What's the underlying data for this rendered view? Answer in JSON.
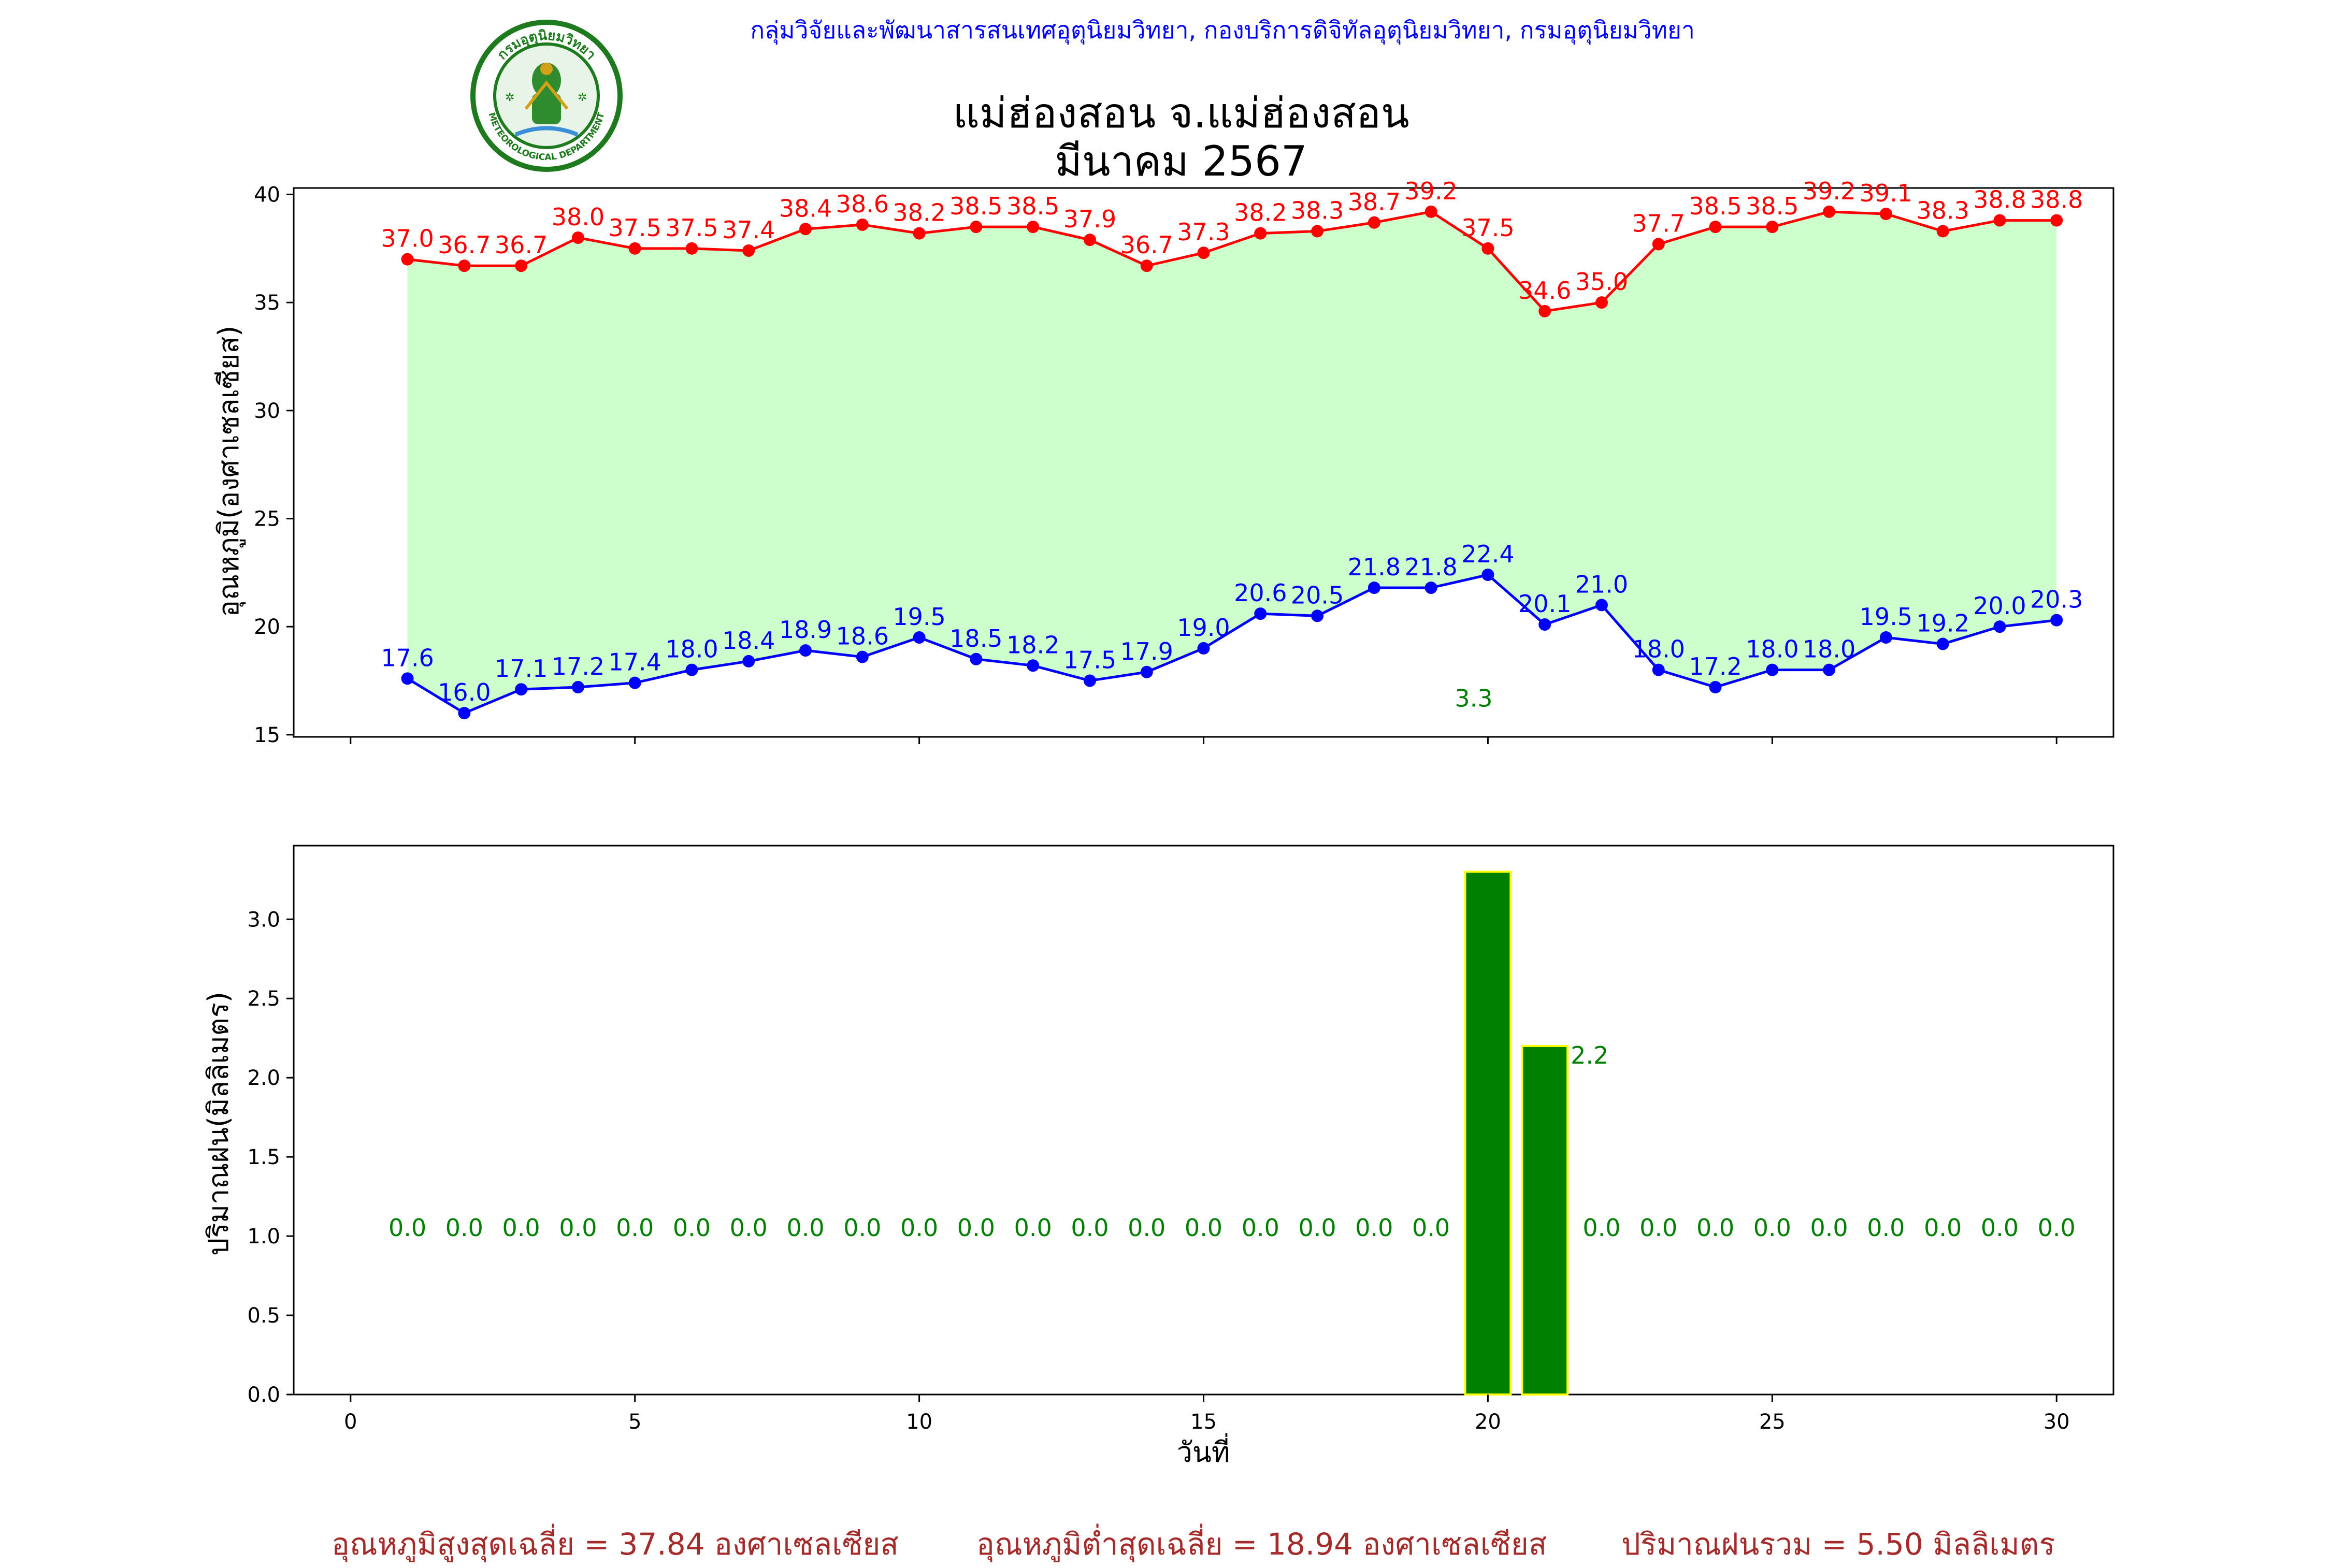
{
  "header": {
    "organization": "กลุ่มวิจัยและพัฒนาสารสนเทศอุตุนิยมวิทยา, กองบริการดิจิทัลอุตุนิยมวิทยา, กรมอุตุนิยมวิทยา",
    "title_line1": "แม่ฮ่องสอน จ.แม่ฮ่องสอน",
    "title_line2": "มีนาคม 2567",
    "logo_text_top": "กรมอุตุนิยมวิทยา",
    "logo_text_bottom": "METEOROLOGICAL DEPARTMENT"
  },
  "colors": {
    "max_series": "#ff0000",
    "min_series": "#0000ff",
    "fill": "#ccffcc",
    "rain_bar": "#008000",
    "rain_edge": "#ffff00",
    "rain_label": "#008000",
    "summary": "#a52a2a",
    "header": "#0000ff"
  },
  "chart_data": [
    {
      "type": "line",
      "ylabel": "อุณหภูมิ(องศาเซลเซียส)",
      "xlim": [
        -1,
        31
      ],
      "ylim": [
        14.9,
        40.3
      ],
      "xticks": [
        0,
        5,
        10,
        15,
        20,
        25,
        30
      ],
      "yticks": [
        15,
        20,
        25,
        30,
        35,
        40
      ],
      "grid": false,
      "x": [
        1,
        2,
        3,
        4,
        5,
        6,
        7,
        8,
        9,
        10,
        11,
        12,
        13,
        14,
        15,
        16,
        17,
        18,
        19,
        20,
        21,
        22,
        23,
        24,
        25,
        26,
        27,
        28,
        29,
        30
      ],
      "series": [
        {
          "key": "max",
          "values": [
            37.0,
            36.7,
            36.7,
            38.0,
            37.5,
            37.5,
            37.4,
            38.4,
            38.6,
            38.2,
            38.5,
            38.5,
            37.9,
            36.7,
            37.3,
            38.2,
            38.3,
            38.7,
            39.2,
            37.5,
            34.6,
            35.0,
            37.7,
            38.5,
            38.5,
            39.2,
            39.1,
            38.3,
            38.8,
            38.8
          ]
        },
        {
          "key": "min",
          "values": [
            17.6,
            16.0,
            17.1,
            17.2,
            17.4,
            18.0,
            18.4,
            18.9,
            18.6,
            19.5,
            18.5,
            18.2,
            17.5,
            17.9,
            19.0,
            20.6,
            20.5,
            21.8,
            21.8,
            22.4,
            20.1,
            21.0,
            18.0,
            17.2,
            18.0,
            18.0,
            19.5,
            19.2,
            20.0,
            20.3
          ]
        }
      ],
      "annotation": {
        "text": "3.3",
        "x": 19.75,
        "y": 16.3
      }
    },
    {
      "type": "bar",
      "ylabel": "ปริมาณฝน(มิลลิเมตร)",
      "xlabel": "วันที่",
      "xlim": [
        -1,
        31
      ],
      "ylim": [
        0,
        3.465
      ],
      "xticks": [
        0,
        5,
        10,
        15,
        20,
        25,
        30
      ],
      "yticks": [
        0.0,
        0.5,
        1.0,
        1.5,
        2.0,
        2.5,
        3.0
      ],
      "grid": false,
      "x": [
        1,
        2,
        3,
        4,
        5,
        6,
        7,
        8,
        9,
        10,
        11,
        12,
        13,
        14,
        15,
        16,
        17,
        18,
        19,
        20,
        21,
        22,
        23,
        24,
        25,
        26,
        27,
        28,
        29,
        30
      ],
      "values": [
        0,
        0,
        0,
        0,
        0,
        0,
        0,
        0,
        0,
        0,
        0,
        0,
        0,
        0,
        0,
        0,
        0,
        0,
        0,
        3.3,
        2.2,
        0,
        0,
        0,
        0,
        0,
        0,
        0,
        0,
        0
      ],
      "labels": [
        "0.0",
        "0.0",
        "0.0",
        "0.0",
        "0.0",
        "0.0",
        "0.0",
        "0.0",
        "0.0",
        "0.0",
        "0.0",
        "0.0",
        "0.0",
        "0.0",
        "0.0",
        "0.0",
        "0.0",
        "0.0",
        "0.0",
        "",
        "2.2",
        "0.0",
        "0.0",
        "0.0",
        "0.0",
        "0.0",
        "0.0",
        "0.0",
        "0.0",
        "0.0"
      ]
    }
  ],
  "summary": {
    "avg_max": "อุณหภูมิสูงสุดเฉลี่ย = 37.84 องศาเซลเซียส",
    "avg_min": "อุณหภูมิต่ำสุดเฉลี่ย = 18.94 องศาเซลเซียส",
    "total_rain": "ปริมาณฝนรวม = 5.50 มิลลิเมตร"
  }
}
